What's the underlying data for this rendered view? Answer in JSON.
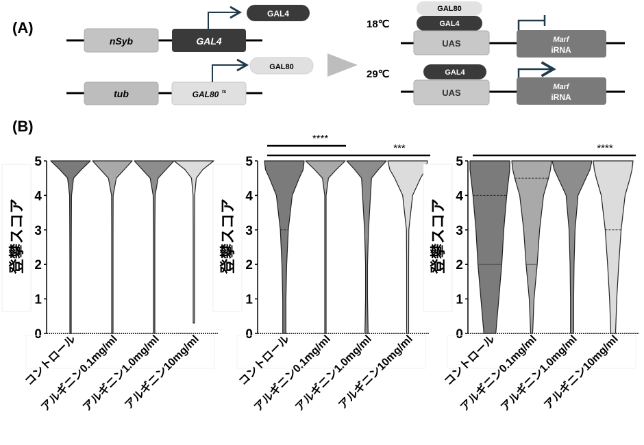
{
  "panel_a": {
    "label": "(A)",
    "constructs": [
      {
        "promoter": "nSyb",
        "gene": "GAL4",
        "product": "GAL4"
      },
      {
        "promoter": "tub",
        "gene": "GAL80",
        "gene_sup": "ts",
        "product": "GAL80"
      }
    ],
    "conditions": [
      {
        "temp": "18℃",
        "bound": [
          "GAL80",
          "GAL4"
        ],
        "uas": "UAS",
        "target": "Marf",
        "target_sub": "iRNA",
        "state": "blocked"
      },
      {
        "temp": "29℃",
        "bound": [
          "GAL4"
        ],
        "uas": "UAS",
        "target": "Marf",
        "target_sub": "iRNA",
        "state": "active"
      }
    ]
  },
  "panel_b": {
    "label": "(B)"
  },
  "colors": {
    "control": "#7b7b7b",
    "arg01": "#a9a9a9",
    "arg10": "#8d8d8d",
    "arg100": "#dcdcdc"
  },
  "chart_data": [
    {
      "type": "violin",
      "ylabel": "登攀スコア",
      "ylim": [
        0,
        5
      ],
      "yticks": [
        0,
        1,
        2,
        3,
        4,
        5
      ],
      "categories": [
        "コントロール",
        "アルギニン0.1mg/ml",
        "アルギニン1.0mg/ml",
        "アルギニン10mg/ml"
      ],
      "density_levels": [
        5,
        4.75,
        4.5,
        4,
        3,
        2,
        1,
        0
      ],
      "series": [
        {
          "density": [
            1,
            0.55,
            0.15,
            0.05,
            0.04,
            0.03,
            0.03,
            0.03
          ],
          "min": 0
        },
        {
          "density": [
            1,
            0.6,
            0.2,
            0.04,
            0.03,
            0.03,
            0.03,
            0.03
          ],
          "min": 0
        },
        {
          "density": [
            1,
            0.6,
            0.2,
            0.05,
            0.03,
            0.03,
            0.03,
            0.03
          ],
          "min": 0
        },
        {
          "density": [
            1,
            0.45,
            0.12,
            0.04,
            0.03,
            0.03,
            0.03,
            0.03
          ],
          "min": 0.3
        }
      ],
      "significance": []
    },
    {
      "type": "violin",
      "ylabel": "登攀スコア",
      "ylim": [
        0,
        5
      ],
      "yticks": [
        0,
        1,
        2,
        3,
        4,
        5
      ],
      "categories": [
        "コントロール",
        "アルギニン0.1mg/ml",
        "アルギニン1.0mg/ml",
        "アルギニン10mg/ml"
      ],
      "density_levels": [
        5,
        4.75,
        4.5,
        4,
        3,
        2,
        1,
        0
      ],
      "series": [
        {
          "density": [
            1,
            0.95,
            0.75,
            0.4,
            0.2,
            0.12,
            0.08,
            0.08
          ],
          "min": 0,
          "median": 3
        },
        {
          "density": [
            1,
            0.55,
            0.15,
            0.03,
            0.03,
            0.03,
            0.03,
            0.03
          ],
          "min": 0
        },
        {
          "density": [
            1,
            0.6,
            0.25,
            0.2,
            0.1,
            0.05,
            0.05,
            0.08
          ],
          "min": 0
        },
        {
          "density": [
            1,
            0.9,
            0.65,
            0.25,
            0.06,
            0.05,
            0.05,
            0.05
          ],
          "min": 0
        }
      ],
      "significance": [
        {
          "from": 0,
          "to": 1,
          "label": "****"
        },
        {
          "from": 0,
          "to": 3,
          "label": "***"
        }
      ]
    },
    {
      "type": "violin",
      "ylabel": "登攀スコア",
      "ylim": [
        0,
        5
      ],
      "yticks": [
        0,
        1,
        2,
        3,
        4,
        5
      ],
      "categories": [
        "コントロール",
        "アルギニン0.1mg/ml",
        "アルギニン1.0mg/ml",
        "アルギニン10mg/ml"
      ],
      "density_levels": [
        5,
        4.75,
        4.5,
        4,
        3,
        2,
        1,
        0
      ],
      "series": [
        {
          "density": [
            1,
            1,
            0.95,
            0.85,
            0.7,
            0.6,
            0.45,
            0.3
          ],
          "min": 0,
          "median": 4,
          "quartile": 2
        },
        {
          "density": [
            1,
            0.95,
            0.85,
            0.6,
            0.4,
            0.28,
            0.12,
            0.05
          ],
          "min": 0,
          "median": 4.5,
          "quartile": 2
        },
        {
          "density": [
            1,
            0.9,
            0.7,
            0.3,
            0.15,
            0.1,
            0.08,
            0.08
          ],
          "min": 0
        },
        {
          "density": [
            1,
            0.95,
            0.85,
            0.6,
            0.4,
            0.28,
            0.18,
            0.12
          ],
          "min": 0,
          "median": 3
        }
      ],
      "significance": [
        {
          "from": 0,
          "to": 3,
          "label": "****"
        }
      ]
    }
  ]
}
